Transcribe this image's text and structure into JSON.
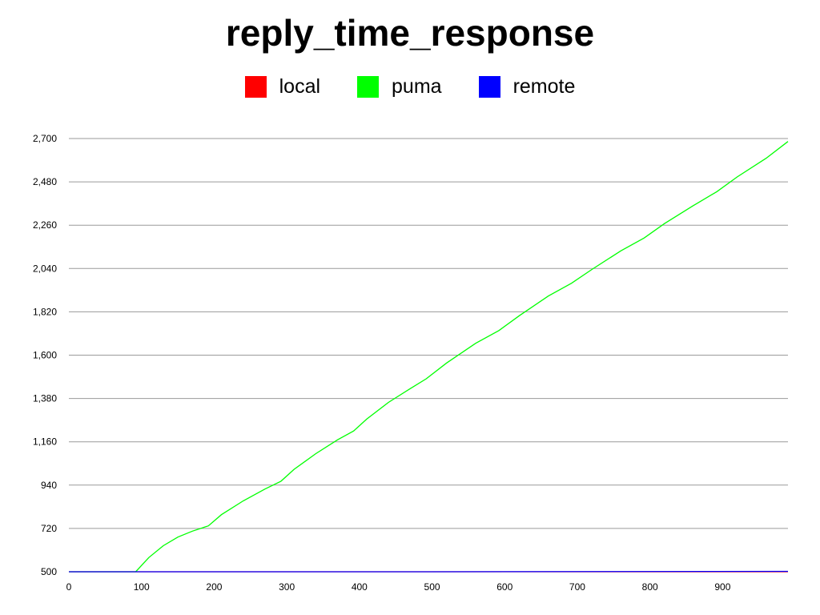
{
  "chart_data": {
    "type": "line",
    "title": "reply_time_response",
    "xlabel": "",
    "ylabel": "",
    "xlim": [
      0,
      990
    ],
    "ylim": [
      500,
      2700
    ],
    "grid": true,
    "legend_position": "top-center",
    "x_ticks": [
      "0",
      "100",
      "200",
      "300",
      "400",
      "500",
      "600",
      "700",
      "800",
      "900"
    ],
    "y_ticks": [
      "500",
      "720",
      "940",
      "1,160",
      "1,380",
      "1,600",
      "1,820",
      "2,040",
      "2,260",
      "2,480",
      "2,700"
    ],
    "series": [
      {
        "name": "local",
        "color": "#ff0000",
        "points": [
          [
            0,
            500
          ],
          [
            990,
            500
          ]
        ]
      },
      {
        "name": "puma",
        "color": "#00ff00",
        "points": [
          [
            0,
            500
          ],
          [
            92,
            500
          ],
          [
            110,
            572
          ],
          [
            130,
            632
          ],
          [
            150,
            676
          ],
          [
            170,
            706
          ],
          [
            192,
            733
          ],
          [
            210,
            790
          ],
          [
            240,
            860
          ],
          [
            270,
            920
          ],
          [
            292,
            960
          ],
          [
            310,
            1020
          ],
          [
            340,
            1100
          ],
          [
            370,
            1170
          ],
          [
            392,
            1215
          ],
          [
            410,
            1275
          ],
          [
            440,
            1360
          ],
          [
            470,
            1430
          ],
          [
            492,
            1480
          ],
          [
            520,
            1560
          ],
          [
            560,
            1660
          ],
          [
            592,
            1725
          ],
          [
            620,
            1800
          ],
          [
            660,
            1900
          ],
          [
            692,
            1965
          ],
          [
            720,
            2035
          ],
          [
            760,
            2130
          ],
          [
            792,
            2195
          ],
          [
            820,
            2268
          ],
          [
            860,
            2360
          ],
          [
            892,
            2430
          ],
          [
            920,
            2505
          ],
          [
            960,
            2600
          ],
          [
            990,
            2685
          ]
        ]
      },
      {
        "name": "remote",
        "color": "#0000ff",
        "points": [
          [
            0,
            500
          ],
          [
            500,
            500
          ],
          [
            990,
            502
          ]
        ]
      }
    ]
  }
}
